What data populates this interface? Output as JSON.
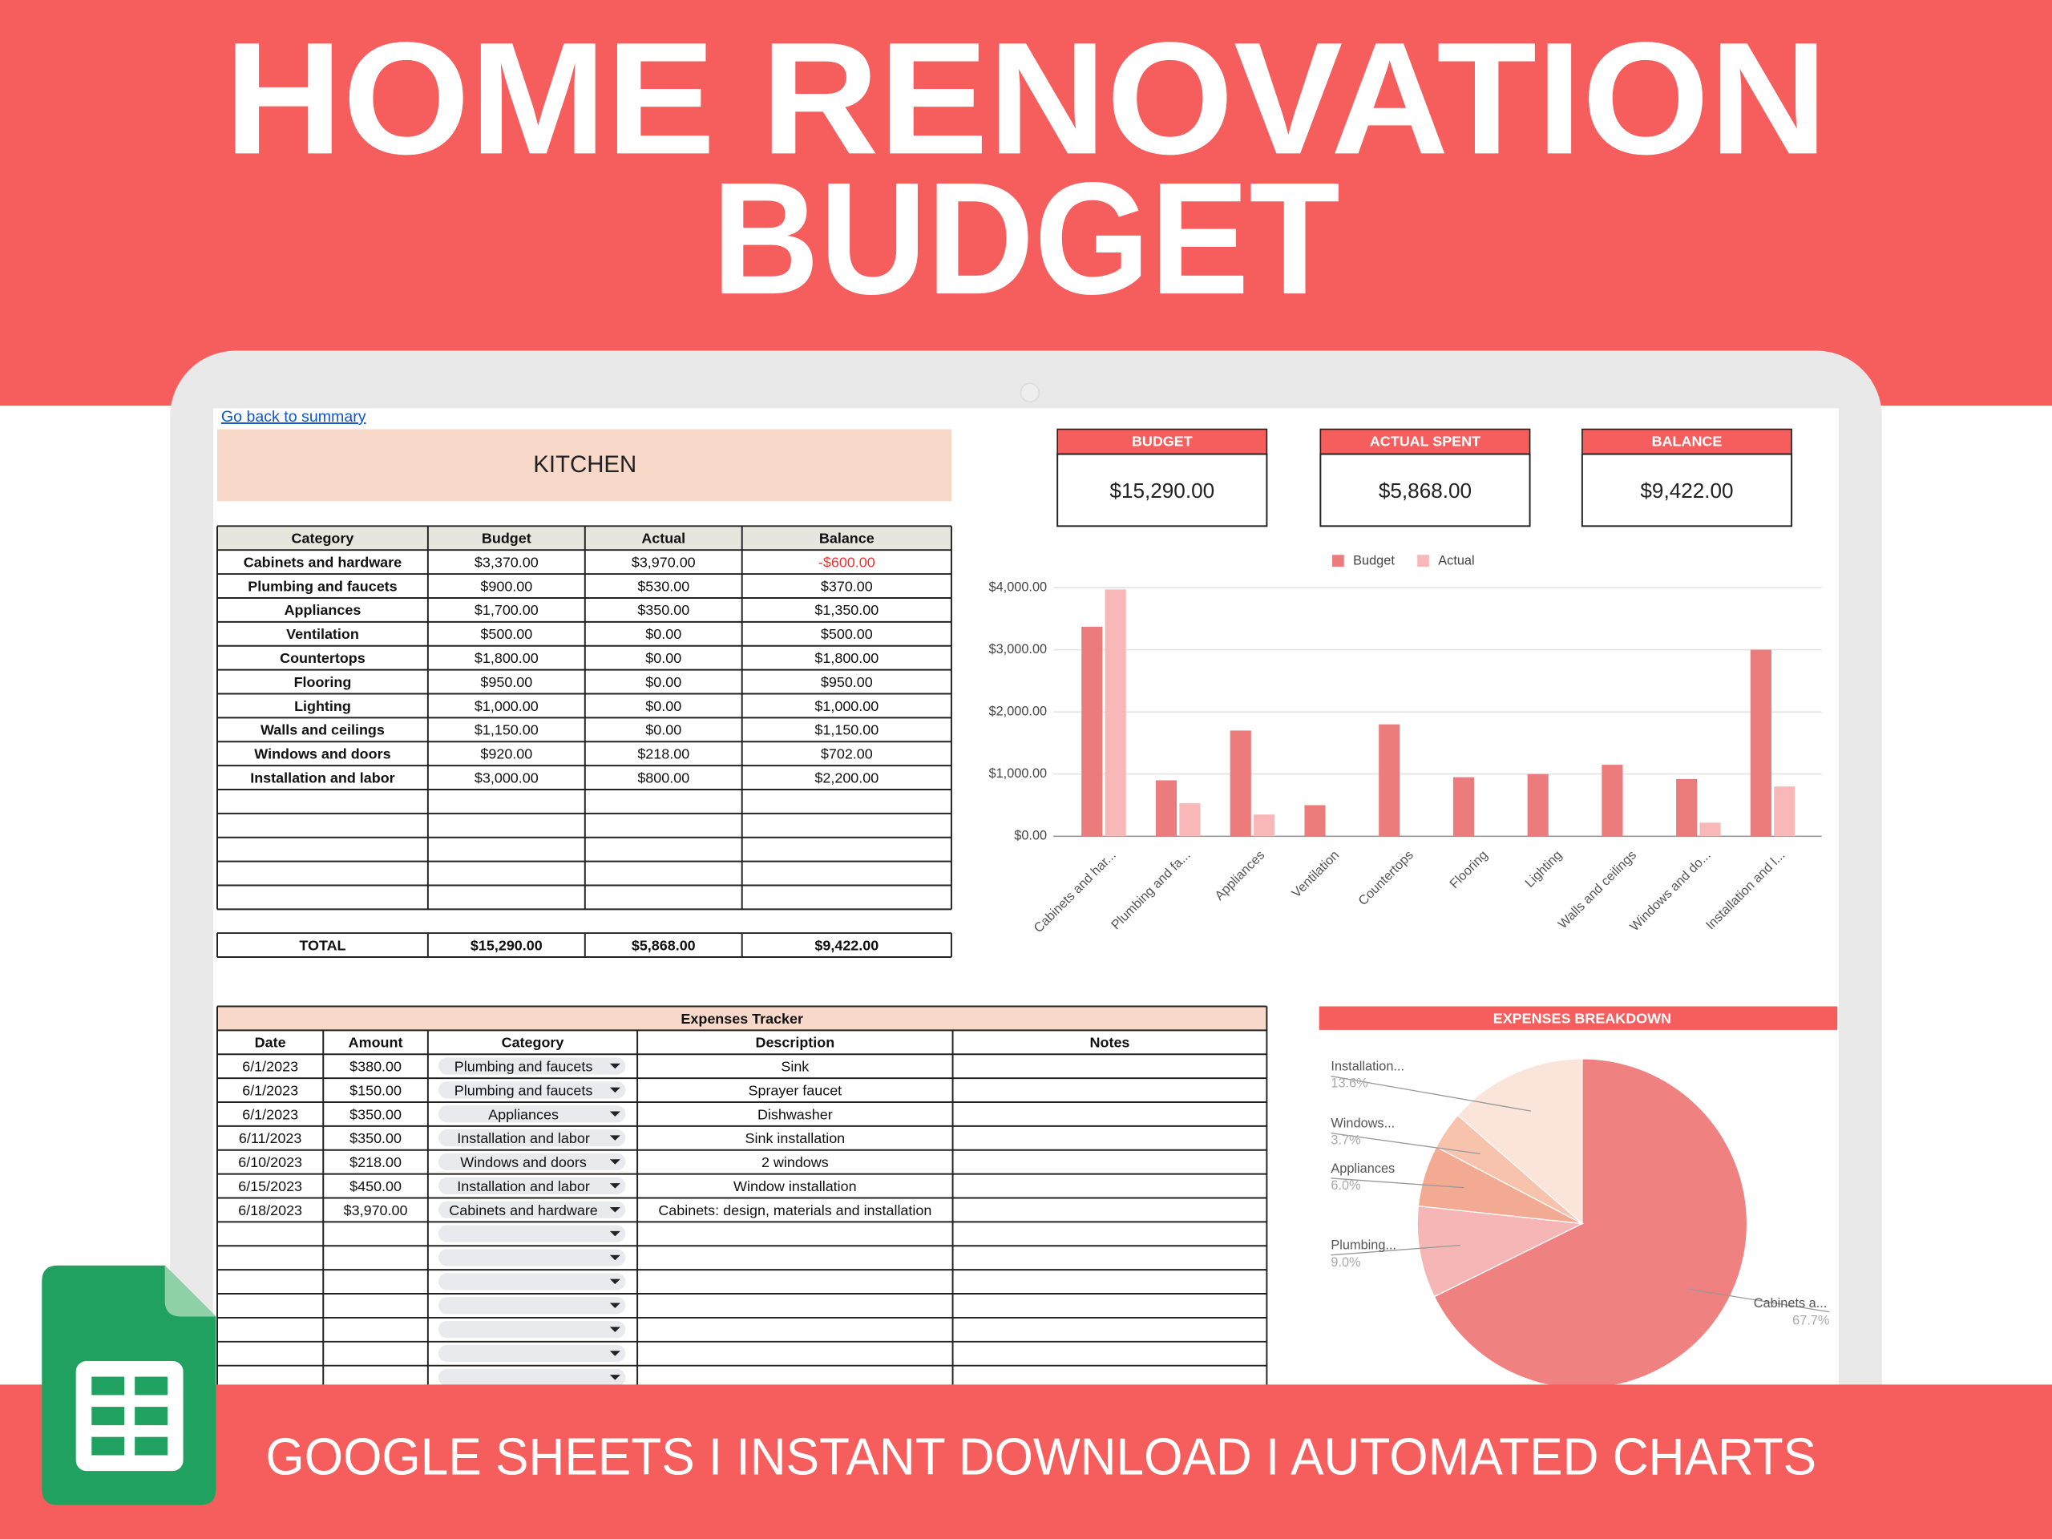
{
  "header": {
    "title": [
      "HOME RENOVATION",
      "BUDGET"
    ]
  },
  "sheet": {
    "link": "Go back to summary",
    "section": "KITCHEN",
    "budget_table": {
      "columns": [
        "Category",
        "Budget",
        "Actual",
        "Balance"
      ],
      "rows": [
        [
          "Cabinets and hardware",
          "$3,370.00",
          "$3,970.00",
          "-$600.00"
        ],
        [
          "Plumbing and faucets",
          "$900.00",
          "$530.00",
          "$370.00"
        ],
        [
          "Appliances",
          "$1,700.00",
          "$350.00",
          "$1,350.00"
        ],
        [
          "Ventilation",
          "$500.00",
          "$0.00",
          "$500.00"
        ],
        [
          "Countertops",
          "$1,800.00",
          "$0.00",
          "$1,800.00"
        ],
        [
          "Flooring",
          "$950.00",
          "$0.00",
          "$950.00"
        ],
        [
          "Lighting",
          "$1,000.00",
          "$0.00",
          "$1,000.00"
        ],
        [
          "Walls and ceilings",
          "$1,150.00",
          "$0.00",
          "$1,150.00"
        ],
        [
          "Windows and doors",
          "$920.00",
          "$218.00",
          "$702.00"
        ],
        [
          "Installation and labor",
          "$3,000.00",
          "$800.00",
          "$2,200.00"
        ]
      ],
      "total": [
        "TOTAL",
        "$15,290.00",
        "$5,868.00",
        "$9,422.00"
      ]
    },
    "cards": [
      {
        "label": "BUDGET",
        "value": "$15,290.00"
      },
      {
        "label": "ACTUAL SPENT",
        "value": "$5,868.00"
      },
      {
        "label": "BALANCE",
        "value": "$9,422.00"
      }
    ],
    "expenses": {
      "title": "Expenses Tracker",
      "columns": [
        "Date",
        "Amount",
        "Category",
        "Description",
        "Notes"
      ],
      "rows": [
        [
          "6/1/2023",
          "$380.00",
          "Plumbing and faucets",
          "Sink"
        ],
        [
          "6/1/2023",
          "$150.00",
          "Plumbing and faucets",
          "Sprayer faucet"
        ],
        [
          "6/1/2023",
          "$350.00",
          "Appliances",
          "Dishwasher"
        ],
        [
          "6/11/2023",
          "$350.00",
          "Installation and labor",
          "Sink installation"
        ],
        [
          "6/10/2023",
          "$218.00",
          "Windows and doors",
          "2 windows"
        ],
        [
          "6/15/2023",
          "$450.00",
          "Installation and labor",
          "Window installation"
        ],
        [
          "6/18/2023",
          "$3,970.00",
          "Cabinets and hardware",
          "Cabinets: design, materials and installation"
        ]
      ]
    }
  },
  "chart_data": [
    {
      "type": "bar",
      "categories": [
        "Cabinets and har...",
        "Plumbing and fa...",
        "Appliances",
        "Ventilation",
        "Countertops",
        "Flooring",
        "Lighting",
        "Walls and ceilings",
        "Windows and do...",
        "Installation and l..."
      ],
      "series": [
        {
          "name": "Budget",
          "color": "#ec7c7c",
          "values": [
            3370,
            900,
            1700,
            500,
            1800,
            950,
            1000,
            1150,
            920,
            3000
          ]
        },
        {
          "name": "Actual",
          "color": "#f8b8b8",
          "values": [
            3970,
            530,
            350,
            0,
            0,
            0,
            0,
            0,
            218,
            800
          ]
        }
      ],
      "ylim": [
        0,
        4000
      ],
      "yticks": [
        {
          "value": 0,
          "label": "$0.00"
        },
        {
          "value": 1000,
          "label": "$1,000.00"
        },
        {
          "value": 2000,
          "label": "$2,000.00"
        },
        {
          "value": 3000,
          "label": "$3,000.00"
        },
        {
          "value": 4000,
          "label": "$4,000.00"
        }
      ],
      "grid": true,
      "legend": "top"
    },
    {
      "type": "pie",
      "title": "EXPENSES BREAKDOWN",
      "categories": [
        "Cabinets a...",
        "Plumbing...",
        "Appliances",
        "Windows...",
        "Installation..."
      ],
      "values": [
        67.7,
        9.0,
        6.0,
        3.7,
        13.6
      ],
      "value_labels": [
        "67.7%",
        "9.0%",
        "6.0%",
        "3.7%",
        "13.6%"
      ],
      "colors": [
        "#f08181",
        "#f6b6b5",
        "#f2aa92",
        "#f7c3ad",
        "#fbe4d9"
      ]
    }
  ],
  "footer": "GOOGLE SHEETS I INSTANT DOWNLOAD I AUTOMATED CHARTS"
}
